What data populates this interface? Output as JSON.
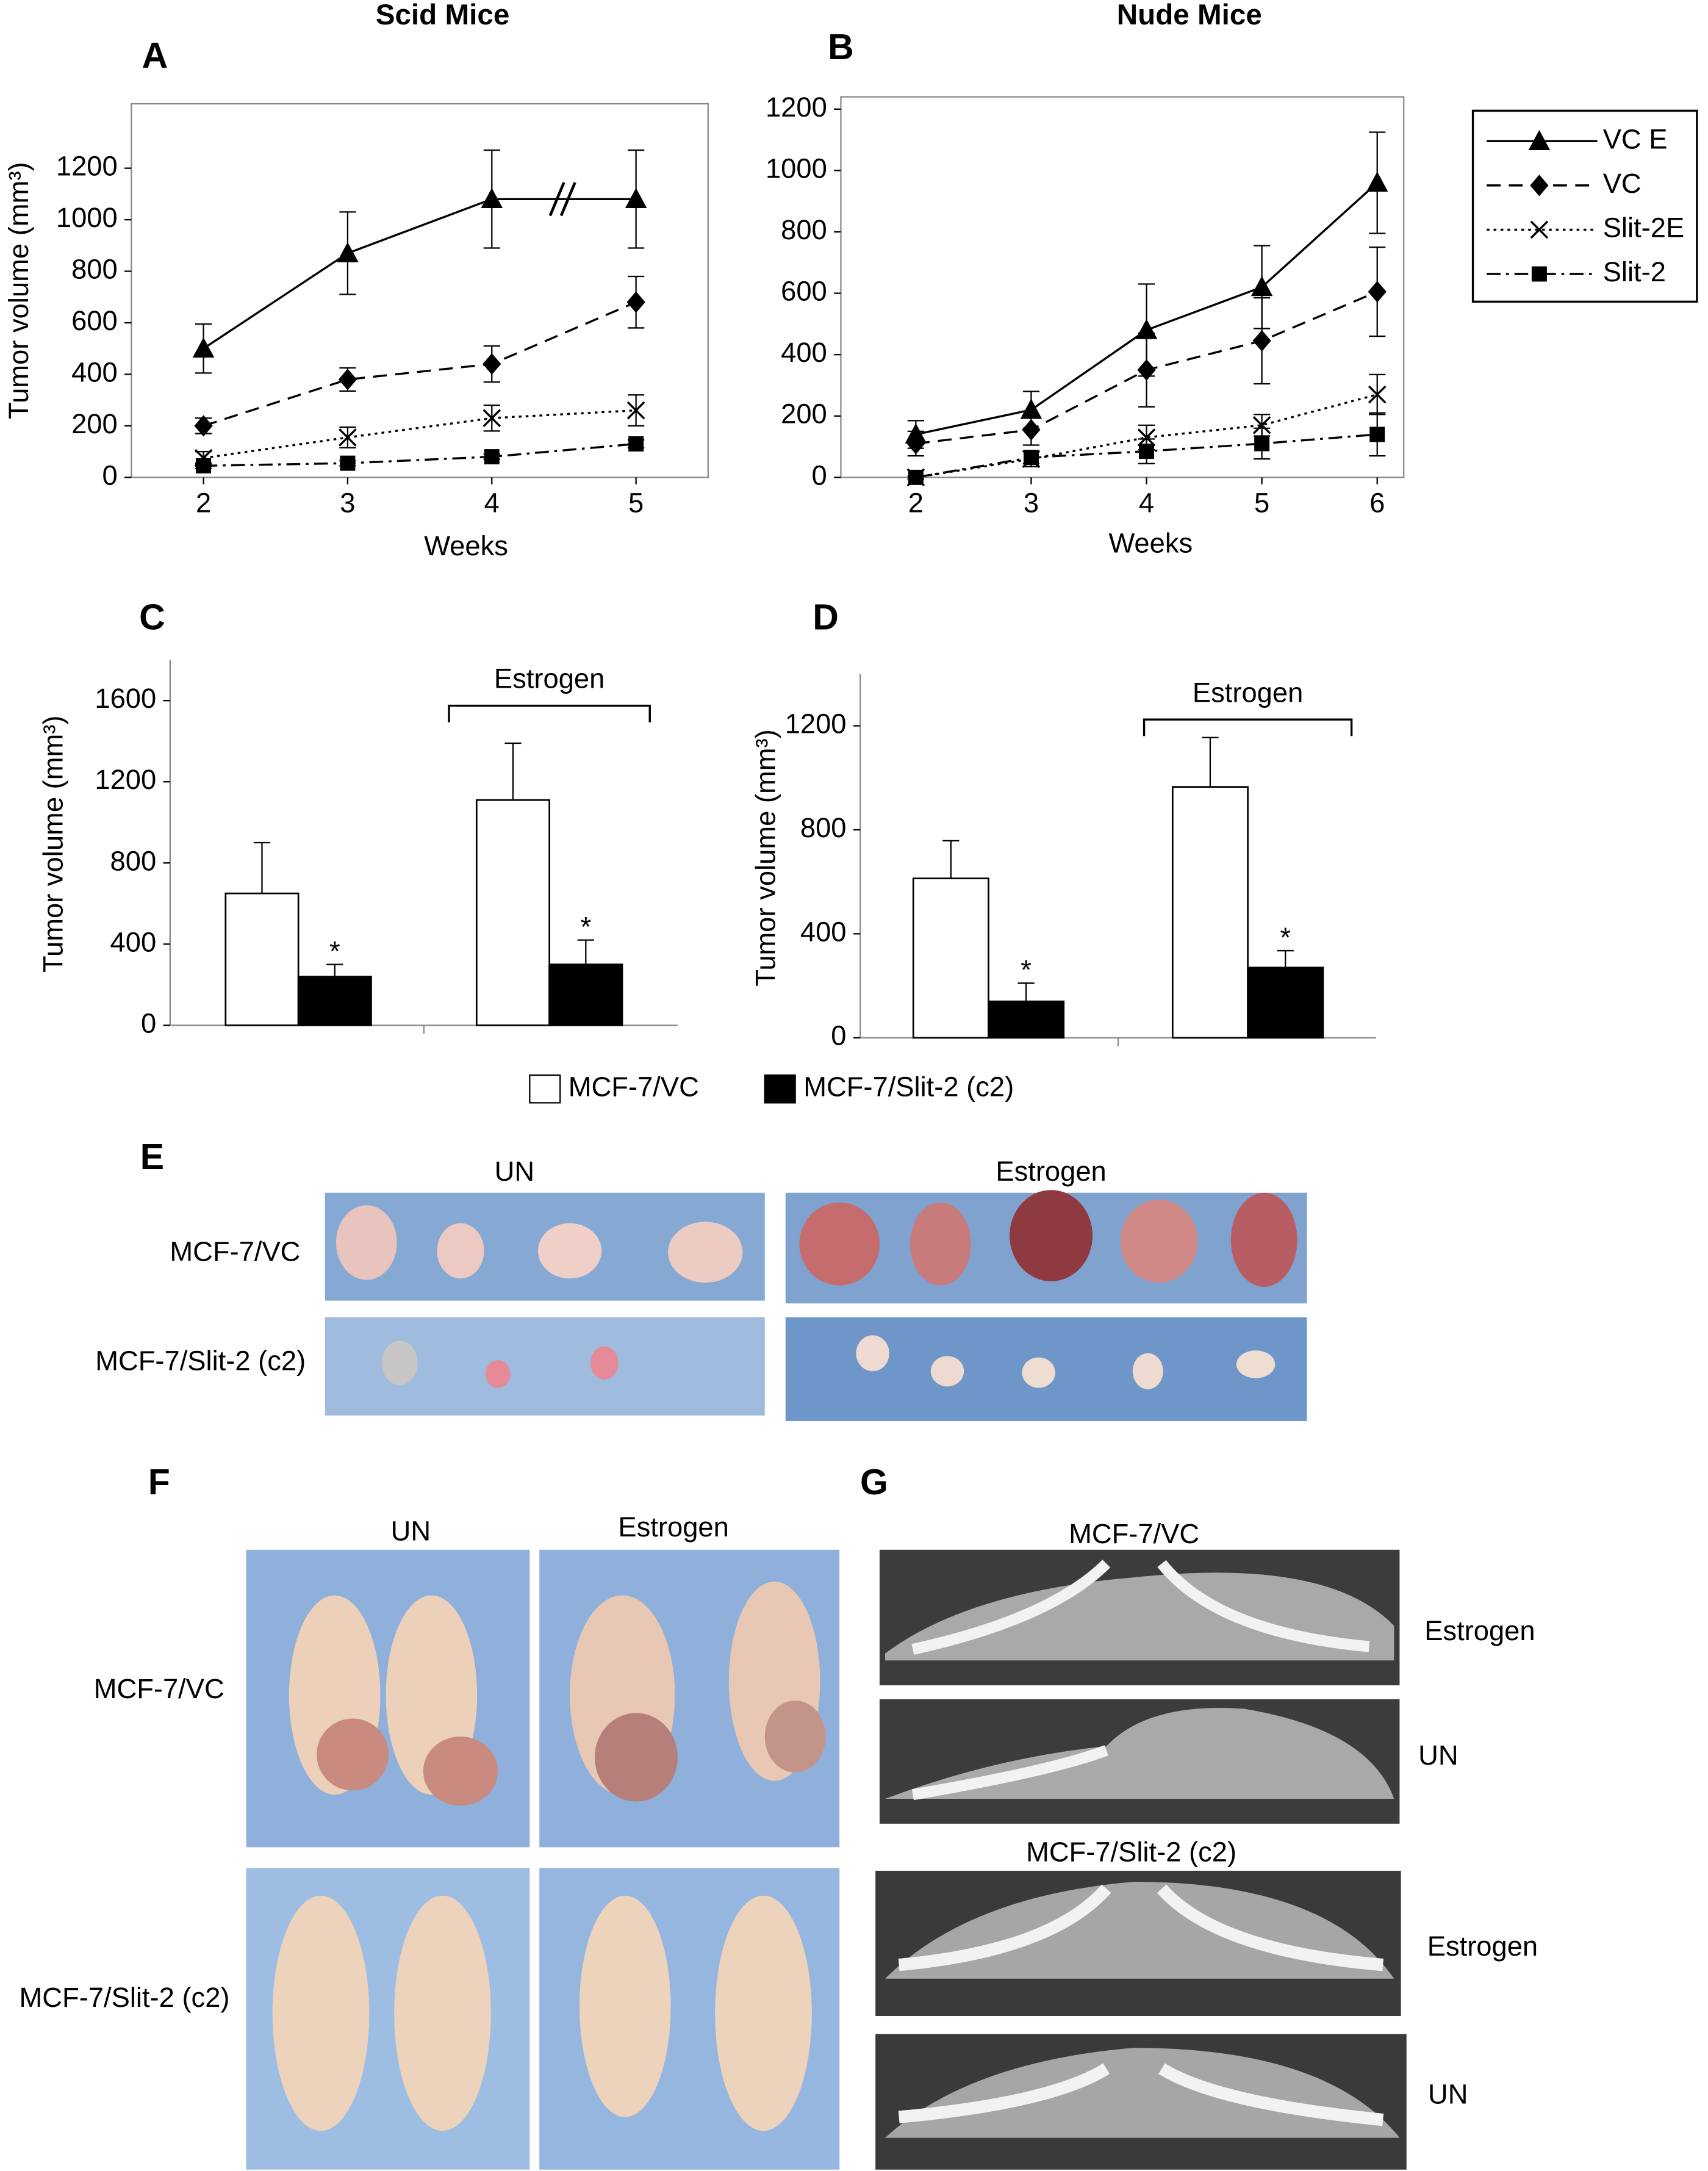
{
  "chart_data": [
    {
      "type": "line",
      "label": "A",
      "title": "Scid Mice",
      "x_label": "Weeks",
      "y_label": "Tumor volume (mm³)",
      "x": [
        2,
        3,
        4,
        5
      ],
      "xlim": [
        1.5,
        5.5
      ],
      "xticks": [
        2,
        3,
        4,
        5
      ],
      "ylim": [
        0,
        1450
      ],
      "yticks": [
        0,
        200,
        400,
        600,
        800,
        1000,
        1200
      ],
      "axis_break": true,
      "series": [
        {
          "color": "#000000",
          "marker": "triangle",
          "dash": "solid",
          "values": [
            500,
            870,
            1080,
            1080
          ],
          "errors": [
            95,
            160,
            190,
            190
          ]
        },
        {
          "color": "#000000",
          "marker": "diamond",
          "dash": "dashed",
          "values": [
            200,
            380,
            440,
            680
          ],
          "errors": [
            30,
            45,
            70,
            100
          ]
        },
        {
          "color": "#000000",
          "marker": "x",
          "dash": "dotted",
          "values": [
            75,
            155,
            230,
            260
          ],
          "errors": [
            25,
            40,
            50,
            60
          ]
        },
        {
          "color": "#000000",
          "marker": "square",
          "dash": "dashdot",
          "values": [
            45,
            55,
            80,
            130
          ],
          "errors": [
            10,
            10,
            10,
            15
          ]
        }
      ]
    },
    {
      "type": "line",
      "label": "B",
      "title": "Nude Mice",
      "x_label": "Weeks",
      "x": [
        2,
        3,
        4,
        5,
        6
      ],
      "xlim": [
        1.35,
        6.23
      ],
      "xticks": [
        2,
        3,
        4,
        5,
        6
      ],
      "ylim": [
        0,
        1240
      ],
      "yticks": [
        0,
        200,
        400,
        600,
        800,
        1000,
        1200
      ],
      "series": [
        {
          "name": "VC E",
          "color": "#000000",
          "marker": "triangle",
          "dash": "solid",
          "values": [
            140,
            220,
            480,
            620,
            960
          ],
          "errors": [
            45,
            60,
            150,
            135,
            165
          ]
        },
        {
          "name": "VC",
          "color": "#000000",
          "marker": "diamond",
          "dash": "dashed",
          "values": [
            110,
            155,
            350,
            445,
            605
          ],
          "errors": [
            40,
            50,
            120,
            140,
            145
          ]
        },
        {
          "name": "Slit-2E",
          "color": "#000000",
          "marker": "x",
          "dash": "dotted",
          "values": [
            0,
            60,
            130,
            170,
            270
          ],
          "errors": [
            5,
            25,
            40,
            35,
            65
          ]
        },
        {
          "name": "Slit-2",
          "color": "#000000",
          "marker": "square",
          "dash": "dashdot",
          "values": [
            0,
            65,
            85,
            110,
            140
          ],
          "errors": [
            5,
            20,
            40,
            50,
            70
          ]
        }
      ]
    },
    {
      "type": "bar",
      "label": "C",
      "y_label": "Tumor volume (mm³)",
      "categories": [
        null,
        null
      ],
      "ylim": [
        0,
        1800
      ],
      "yticks": [
        0,
        400,
        800,
        1200,
        1600
      ],
      "bracket": {
        "text": "Estrogen",
        "category": 1
      },
      "series": [
        {
          "name": "MCF-7/VC",
          "color": "#ffffff",
          "values": [
            650,
            1110
          ],
          "errors": [
            250,
            280
          ]
        },
        {
          "name": "MCF-7/Slit-2 (c2)",
          "color": "#000000",
          "values": [
            240,
            300
          ],
          "errors": [
            60,
            120
          ],
          "significance": [
            "*",
            "*"
          ]
        }
      ]
    },
    {
      "type": "bar",
      "label": "D",
      "y_label": "Tumor volume (mm³)",
      "categories": [
        null,
        null
      ],
      "ylim": [
        0,
        1400
      ],
      "yticks": [
        0,
        400,
        800,
        1200
      ],
      "bracket": {
        "text": "Estrogen",
        "category": 1
      },
      "series": [
        {
          "color": "#ffffff",
          "values": [
            613,
            965
          ],
          "errors": [
            145,
            190
          ]
        },
        {
          "color": "#000000",
          "values": [
            140,
            270
          ],
          "errors": [
            70,
            65
          ],
          "significance": [
            "*",
            "*"
          ]
        }
      ]
    }
  ],
  "panels": {
    "E": {
      "label": "E",
      "columns": [
        "UN",
        "Estrogen"
      ],
      "rows": [
        "MCF-7/VC",
        "MCF-7/Slit-2 (c2)"
      ]
    },
    "F": {
      "label": "F",
      "columns": [
        "UN",
        "Estrogen"
      ],
      "rows": [
        "MCF-7/VC",
        "MCF-7/Slit-2 (c2)"
      ]
    },
    "G": {
      "label": "G",
      "groups": [
        {
          "title": "MCF-7/VC",
          "rows": [
            "Estrogen",
            "UN"
          ]
        },
        {
          "title": "MCF-7/Slit-2 (c2)",
          "rows": [
            "Estrogen",
            "UN"
          ]
        }
      ]
    }
  }
}
